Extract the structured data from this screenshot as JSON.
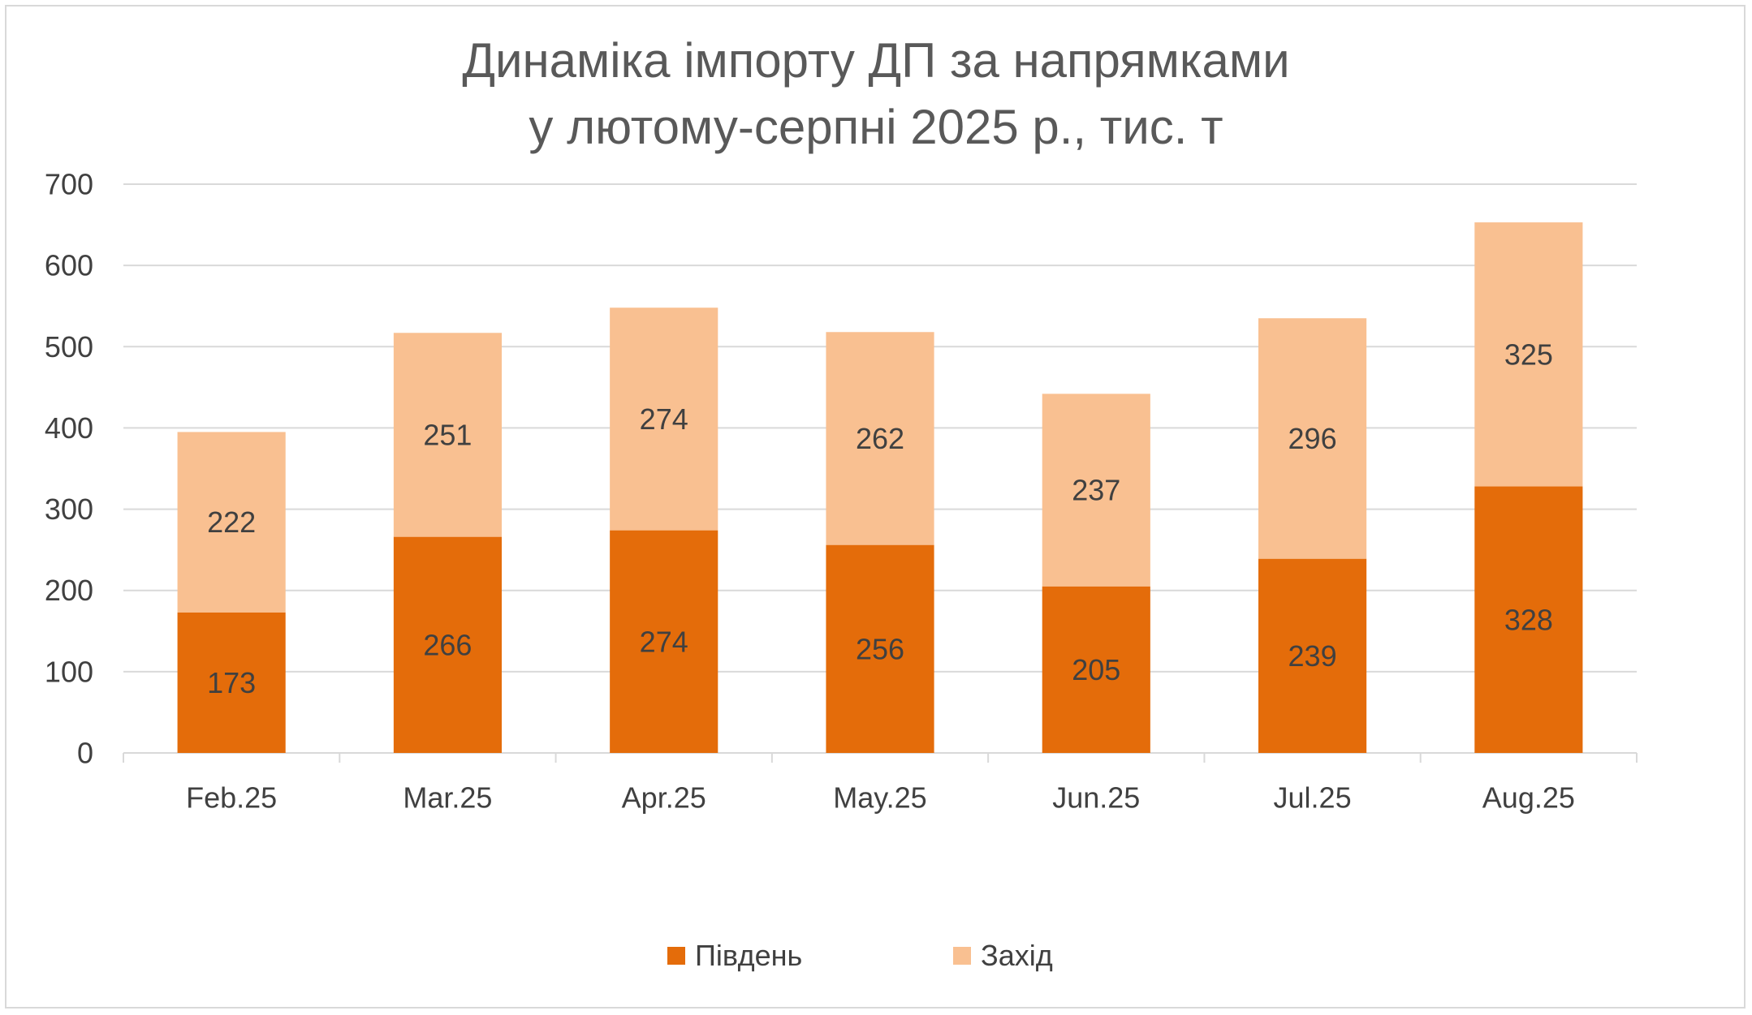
{
  "chart_data": {
    "type": "bar",
    "stacked": true,
    "title": [
      "Динаміка імпорту ДП за напрямками",
      "у лютому-серпні 2025 р., тис. т"
    ],
    "xlabel": "",
    "ylabel": "",
    "ylim": [
      0,
      700
    ],
    "yticks": [
      "0",
      "100",
      "200",
      "300",
      "400",
      "500",
      "600",
      "700"
    ],
    "categories": [
      "Feb.25",
      "Mar.25",
      "Apr.25",
      "May.25",
      "Jun.25",
      "Jul.25",
      "Aug.25"
    ],
    "grid": true,
    "legend_position": "bottom",
    "series": [
      {
        "name": "Південь",
        "color": "#e46c0a",
        "values": [
          173,
          266,
          274,
          256,
          205,
          239,
          328
        ]
      },
      {
        "name": "Захід",
        "color": "#f9c091",
        "values": [
          222,
          251,
          274,
          262,
          237,
          296,
          325
        ]
      }
    ]
  }
}
